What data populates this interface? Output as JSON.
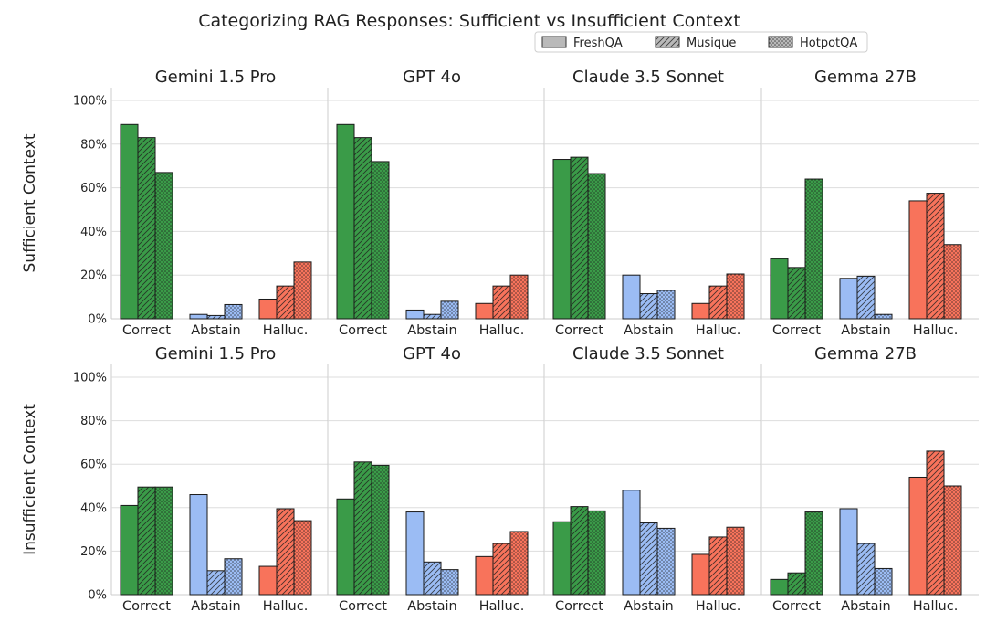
{
  "title": "Categorizing RAG Responses: Sufficient vs Insufficient Context",
  "legend": [
    {
      "name": "FreshQA",
      "pattern": "solid"
    },
    {
      "name": "Musique",
      "pattern": "hatch"
    },
    {
      "name": "HotpotQA",
      "pattern": "dots"
    }
  ],
  "colors": {
    "Correct": "#3a9b48",
    "Abstain": "#9bbcf4",
    "Halluc.": "#f8735b",
    "legend_fill": "#b9b9b9"
  },
  "chart_data": {
    "type": "bar",
    "title": "Categorizing RAG Responses: Sufficient vs Insufficient Context",
    "categories": [
      "Correct",
      "Abstain",
      "Halluc."
    ],
    "series_names": [
      "FreshQA",
      "Musique",
      "HotpotQA"
    ],
    "y_ticks": [
      "0%",
      "20%",
      "40%",
      "60%",
      "80%",
      "100%"
    ],
    "ylim": [
      0,
      100
    ],
    "grid": "horizontal",
    "legend_position": "top-right",
    "rows": [
      {
        "label": "Sufficient Context",
        "panels": [
          {
            "title": "Gemini 1.5 Pro",
            "values": {
              "Correct": [
                89,
                83,
                67
              ],
              "Abstain": [
                2,
                1.5,
                6.5
              ],
              "Halluc.": [
                9,
                15,
                26
              ]
            }
          },
          {
            "title": "GPT 4o",
            "values": {
              "Correct": [
                89,
                83,
                72
              ],
              "Abstain": [
                4,
                2,
                8
              ],
              "Halluc.": [
                7,
                15,
                20
              ]
            }
          },
          {
            "title": "Claude 3.5 Sonnet",
            "values": {
              "Correct": [
                73,
                74,
                66.5
              ],
              "Abstain": [
                20,
                11.5,
                13
              ],
              "Halluc.": [
                7,
                15,
                20.5
              ]
            }
          },
          {
            "title": "Gemma 27B",
            "values": {
              "Correct": [
                27.5,
                23.5,
                64
              ],
              "Abstain": [
                18.5,
                19.5,
                2
              ],
              "Halluc.": [
                54,
                57.5,
                34
              ]
            }
          }
        ]
      },
      {
        "label": "Insufficient Context",
        "panels": [
          {
            "title": "Gemini 1.5 Pro",
            "values": {
              "Correct": [
                41,
                49.5,
                49.5
              ],
              "Abstain": [
                46,
                11,
                16.5
              ],
              "Halluc.": [
                13,
                39.5,
                34
              ]
            }
          },
          {
            "title": "GPT 4o",
            "values": {
              "Correct": [
                44,
                61,
                59.5
              ],
              "Abstain": [
                38,
                15,
                11.5
              ],
              "Halluc.": [
                17.5,
                23.5,
                29
              ]
            }
          },
          {
            "title": "Claude 3.5 Sonnet",
            "values": {
              "Correct": [
                33.5,
                40.5,
                38.5
              ],
              "Abstain": [
                48,
                33,
                30.5
              ],
              "Halluc.": [
                18.5,
                26.5,
                31
              ]
            }
          },
          {
            "title": "Gemma 27B",
            "values": {
              "Correct": [
                7,
                10,
                38
              ],
              "Abstain": [
                39.5,
                23.5,
                12
              ],
              "Halluc.": [
                54,
                66,
                50
              ]
            }
          }
        ]
      }
    ]
  }
}
